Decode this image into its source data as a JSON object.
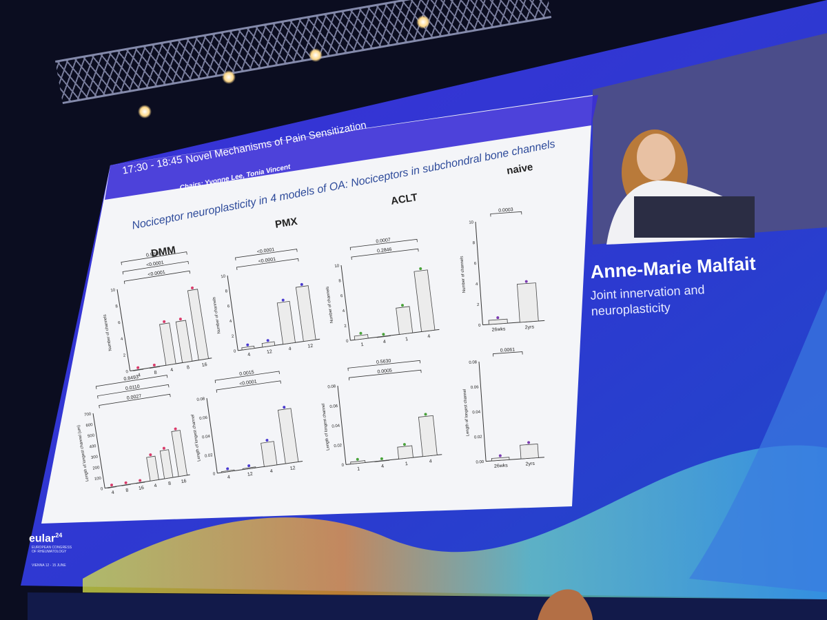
{
  "session": {
    "time": "17:30 - 18:45",
    "title": "Novel Mechanisms of Pain Sensitization",
    "chairs": "Chairs: Yvonne Lee, Tonia Vincent"
  },
  "slide": {
    "heading": "Nociceptor neuroplasticity in 4 models of OA: Nociceptors in subchondral bone channels",
    "groups": [
      "DMM",
      "PMX",
      "ACLT",
      "naive"
    ],
    "panels": [
      {
        "id": "dmm-channels",
        "ylabel": "Number of channels",
        "yticks": [
          "0",
          "2",
          "4",
          "6",
          "8",
          "10"
        ],
        "xticks": [
          "4",
          "8",
          "4",
          "8",
          "16"
        ],
        "pvalues": [
          "<0.0001",
          "<0.0001",
          "0.9868"
        ],
        "bars": [
          0,
          0,
          5,
          5,
          8.5
        ],
        "color": "#d93b6a"
      },
      {
        "id": "pmx-channels",
        "ylabel": "Number of channels",
        "yticks": [
          "0",
          "2",
          "4",
          "6",
          "8",
          "10"
        ],
        "xticks": [
          "4",
          "12",
          "4",
          "12"
        ],
        "pvalues": [
          "<0.0001",
          "<0.0001"
        ],
        "bars": [
          0.3,
          0.5,
          5.5,
          7.2
        ],
        "color": "#4a3ad0"
      },
      {
        "id": "aclt-channels",
        "ylabel": "Number of channels",
        "yticks": [
          "0",
          "2",
          "4",
          "6",
          "8",
          "10"
        ],
        "xticks": [
          "1",
          "4",
          "1",
          "4"
        ],
        "pvalues": [
          "0.2846",
          "0.0007"
        ],
        "bars": [
          0.5,
          0,
          3.5,
          8
        ],
        "color": "#49a23a"
      },
      {
        "id": "naive-channels",
        "ylabel": "Number of channels",
        "yticks": [
          "0",
          "2",
          "4",
          "6",
          "8",
          "10"
        ],
        "xticks": [
          "26wks",
          "2yrs"
        ],
        "pvalues": [
          "0.0003"
        ],
        "bars": [
          0.4,
          3.7
        ],
        "color": "#7b3ab0"
      },
      {
        "id": "dmm-length",
        "ylabel": "Length of longest channel (um)",
        "yticks": [
          "0",
          "100",
          "200",
          "300",
          "400",
          "500",
          "600",
          "700"
        ],
        "xticks": [
          "4",
          "8",
          "16",
          "4",
          "8",
          "16"
        ],
        "pvalues": [
          "0.0027",
          "0.0110",
          "0.8493"
        ],
        "bars": [
          0,
          0,
          0,
          220,
          260,
          420
        ],
        "color": "#d93b6a"
      },
      {
        "id": "pmx-length",
        "ylabel": "Length of longest channel",
        "yticks": [
          "0",
          "0.02",
          "0.04",
          "0.06",
          "0.08"
        ],
        "xticks": [
          "4",
          "12",
          "4",
          "12"
        ],
        "pvalues": [
          "<0.0001",
          "0.0015"
        ],
        "bars": [
          0.001,
          0.001,
          0.025,
          0.057
        ],
        "color": "#4a3ad0"
      },
      {
        "id": "aclt-length",
        "ylabel": "Length of longest channel",
        "yticks": [
          "0",
          "0.02",
          "0.04",
          "0.06",
          "0.08"
        ],
        "xticks": [
          "1",
          "4",
          "1",
          "4"
        ],
        "pvalues": [
          "0.0005",
          "0.5630"
        ],
        "bars": [
          0.002,
          0,
          0.012,
          0.04
        ],
        "color": "#49a23a"
      },
      {
        "id": "naive-length",
        "ylabel": "Length of longest channel",
        "yticks": [
          "0.00",
          "0.02",
          "0.04",
          "0.06",
          "0.08"
        ],
        "xticks": [
          "26wks",
          "2yrs"
        ],
        "pvalues": [
          "0.0061"
        ],
        "bars": [
          0.002,
          0.011
        ],
        "color": "#7b3ab0"
      }
    ]
  },
  "speaker": {
    "name": "Anne-Marie Malfait",
    "talk": "Joint innervation and neuroplasticity"
  },
  "branding": {
    "logo": "eular",
    "year": "24",
    "congress": "EUROPEAN CONGRESS OF RHEUMATOLOGY",
    "location": "VIENNA 12 - 15 JUNE"
  },
  "colors": {
    "screen_blue": "#3a2bd6",
    "accent": "#2d4a9a"
  }
}
